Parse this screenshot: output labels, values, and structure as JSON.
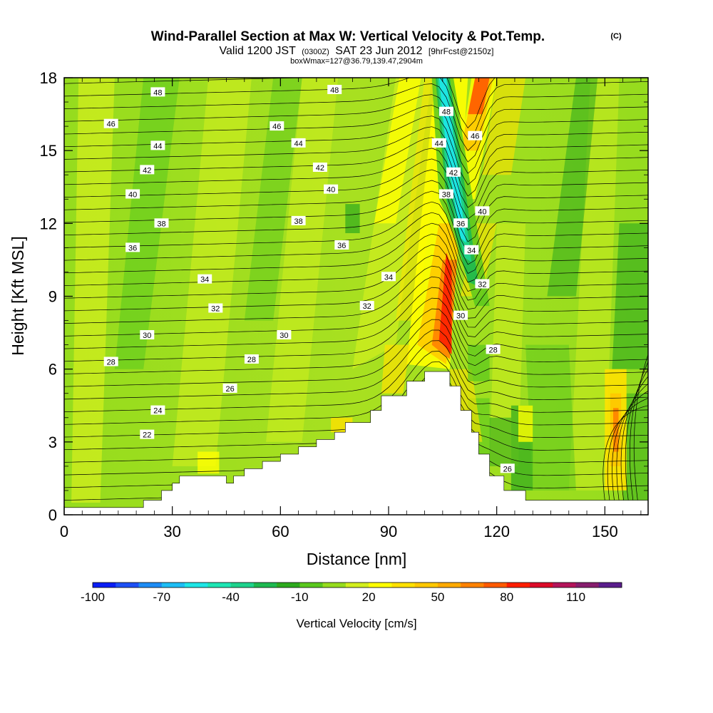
{
  "header": {
    "title_main": "Wind-Parallel Section at Max W: Vertical Velocity & Pot.Temp.",
    "title_tag": "(C)",
    "valid_prefix": "Valid 1200 JST",
    "valid_utc": "(0300Z)",
    "valid_date": "SAT 23 Jun 2012",
    "forecast": "[9hrFcst@2150z]",
    "boxinfo": "boxWmax=127@36.79,139.47,2904m"
  },
  "chart_data": {
    "type": "heatmap",
    "xlabel": "Distance [nm]",
    "ylabel": "Height [Kft MSL]",
    "xlim": [
      0,
      162
    ],
    "ylim": [
      0,
      18
    ],
    "x_ticks": [
      0,
      30,
      60,
      90,
      120,
      150
    ],
    "y_ticks": [
      0,
      3,
      6,
      9,
      12,
      15,
      18
    ],
    "colorbar": {
      "label": "Vertical Velocity [cm/s]",
      "tick_labels": [
        "-100",
        "-70",
        "-40",
        "-10",
        "20",
        "50",
        "80",
        "110"
      ],
      "tick_values": [
        -100,
        -70,
        -40,
        -10,
        20,
        50,
        80,
        110
      ],
      "levels": [
        -100,
        -90,
        -80,
        -70,
        -60,
        -50,
        -40,
        -30,
        -20,
        -10,
        0,
        10,
        20,
        30,
        40,
        50,
        60,
        70,
        80,
        90,
        100,
        110,
        120
      ],
      "colors": [
        "#0a1ef5",
        "#1e50f5",
        "#1e8cf5",
        "#1ebef5",
        "#1ee6e6",
        "#1ee6b4",
        "#1ed28c",
        "#1eb950",
        "#2daa1e",
        "#5ac81e",
        "#96dc1e",
        "#d2ee1e",
        "#ffff00",
        "#ffe100",
        "#ffc800",
        "#ffaa00",
        "#ff8200",
        "#ff5a00",
        "#ff1e00",
        "#dc0a28",
        "#b4145a",
        "#871e6e",
        "#5a1e8c"
      ]
    },
    "terrain_profile": {
      "x": [
        0,
        22,
        22,
        27,
        27,
        30,
        30,
        32,
        32,
        37,
        37,
        45,
        45,
        47,
        47,
        50,
        50,
        55,
        55,
        60,
        60,
        65,
        65,
        70,
        70,
        75,
        75,
        78,
        78,
        85,
        85,
        88,
        88,
        95,
        95,
        100,
        100,
        107,
        107,
        110,
        110,
        113,
        113,
        115,
        115,
        118,
        118,
        122,
        122,
        128,
        128,
        162
      ],
      "height": [
        0.3,
        0.3,
        0.6,
        0.6,
        1.0,
        1.0,
        1.3,
        1.3,
        1.6,
        1.6,
        1.6,
        1.6,
        1.3,
        1.3,
        1.6,
        1.6,
        1.9,
        1.9,
        2.2,
        2.2,
        2.5,
        2.5,
        2.8,
        2.8,
        3.1,
        3.1,
        3.4,
        3.4,
        3.8,
        3.8,
        4.3,
        4.3,
        4.9,
        4.9,
        5.5,
        5.5,
        5.9,
        5.9,
        5.3,
        5.3,
        4.3,
        4.3,
        3.4,
        3.4,
        2.5,
        2.5,
        1.6,
        1.6,
        1.0,
        1.0,
        0.6,
        0.6
      ]
    },
    "contour_labels": [
      {
        "text": "48",
        "x": 26,
        "y": 17.4
      },
      {
        "text": "46",
        "x": 13,
        "y": 16.1
      },
      {
        "text": "44",
        "x": 26,
        "y": 15.2
      },
      {
        "text": "42",
        "x": 23,
        "y": 14.2
      },
      {
        "text": "40",
        "x": 19,
        "y": 13.2
      },
      {
        "text": "38",
        "x": 27,
        "y": 12.0
      },
      {
        "text": "36",
        "x": 19,
        "y": 11.0
      },
      {
        "text": "34",
        "x": 39,
        "y": 9.7
      },
      {
        "text": "32",
        "x": 42,
        "y": 8.5
      },
      {
        "text": "30",
        "x": 23,
        "y": 7.4
      },
      {
        "text": "28",
        "x": 13,
        "y": 6.3
      },
      {
        "text": "28",
        "x": 52,
        "y": 6.4
      },
      {
        "text": "26",
        "x": 46,
        "y": 5.2
      },
      {
        "text": "24",
        "x": 26,
        "y": 4.3
      },
      {
        "text": "22",
        "x": 23,
        "y": 3.3
      },
      {
        "text": "48",
        "x": 75,
        "y": 17.5
      },
      {
        "text": "46",
        "x": 59,
        "y": 16.0
      },
      {
        "text": "44",
        "x": 65,
        "y": 15.3
      },
      {
        "text": "42",
        "x": 71,
        "y": 14.3
      },
      {
        "text": "40",
        "x": 74,
        "y": 13.4
      },
      {
        "text": "38",
        "x": 65,
        "y": 12.1
      },
      {
        "text": "36",
        "x": 77,
        "y": 11.1
      },
      {
        "text": "34",
        "x": 90,
        "y": 9.8
      },
      {
        "text": "32",
        "x": 84,
        "y": 8.6
      },
      {
        "text": "30",
        "x": 61,
        "y": 7.4
      },
      {
        "text": "48",
        "x": 106,
        "y": 16.6
      },
      {
        "text": "46",
        "x": 114,
        "y": 15.6
      },
      {
        "text": "44",
        "x": 104,
        "y": 15.3
      },
      {
        "text": "42",
        "x": 108,
        "y": 14.1
      },
      {
        "text": "38",
        "x": 106,
        "y": 13.2
      },
      {
        "text": "40",
        "x": 116,
        "y": 12.5
      },
      {
        "text": "36",
        "x": 110,
        "y": 12.0
      },
      {
        "text": "34",
        "x": 113,
        "y": 10.9
      },
      {
        "text": "32",
        "x": 116,
        "y": 9.5
      },
      {
        "text": "30",
        "x": 110,
        "y": 8.2
      },
      {
        "text": "28",
        "x": 119,
        "y": 6.8
      },
      {
        "text": "26",
        "x": 123,
        "y": 1.9
      }
    ]
  }
}
